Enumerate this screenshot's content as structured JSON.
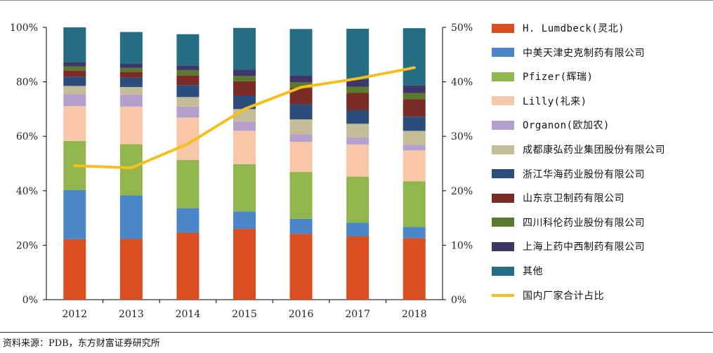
{
  "chart_data": {
    "type": "bar",
    "stacked": true,
    "categories": [
      "2012",
      "2013",
      "2014",
      "2015",
      "2016",
      "2017",
      "2018"
    ],
    "y_left": {
      "ylim": [
        0,
        100
      ],
      "ticks": [
        "0%",
        "20%",
        "40%",
        "60%",
        "80%",
        "100%"
      ]
    },
    "y_right": {
      "ylim": [
        0,
        50
      ],
      "ticks": [
        "0%",
        "10%",
        "20%",
        "30%",
        "40%",
        "50%"
      ]
    },
    "series": [
      {
        "name": "H. Lumdbeck(灵北)",
        "color": "#d94f21",
        "values": [
          22.2,
          22.3,
          24.6,
          26.0,
          24.2,
          23.2,
          22.6
        ]
      },
      {
        "name": "中美天津史克制药有限公司",
        "color": "#4a86c8",
        "values": [
          18.1,
          16.0,
          9.0,
          6.4,
          5.5,
          5.1,
          4.1
        ]
      },
      {
        "name": "Pfizer(辉瑞)",
        "color": "#92b64e",
        "values": [
          18.0,
          18.8,
          17.7,
          17.4,
          17.2,
          16.9,
          16.8
        ]
      },
      {
        "name": "Lilly(礼来)",
        "color": "#f7c7a8",
        "values": [
          12.8,
          13.8,
          15.6,
          12.2,
          11.1,
          11.8,
          11.3
        ]
      },
      {
        "name": "Organon(欧加农)",
        "color": "#b49fcd",
        "values": [
          4.4,
          4.4,
          4.0,
          3.4,
          2.8,
          2.6,
          2.1
        ]
      },
      {
        "name": "成都康弘药业集团股份有限公司",
        "color": "#c4bd97",
        "values": [
          3.0,
          2.8,
          3.5,
          4.6,
          5.4,
          5.0,
          5.1
        ]
      },
      {
        "name": "浙江华海药业股份有限公司",
        "color": "#2a4d7c",
        "values": [
          3.4,
          3.4,
          4.4,
          5.0,
          5.6,
          5.0,
          5.2
        ]
      },
      {
        "name": "山东京卫制药有限公司",
        "color": "#7b2b26",
        "values": [
          2.3,
          2.2,
          3.6,
          5.2,
          6.0,
          6.3,
          6.4
        ]
      },
      {
        "name": "四川科伦药业股份有限公司",
        "color": "#5a7a2e",
        "values": [
          1.5,
          1.4,
          1.9,
          2.0,
          2.0,
          2.3,
          2.3
        ]
      },
      {
        "name": "上海上药中西制药有限公司",
        "color": "#3e3568",
        "values": [
          1.6,
          1.5,
          1.7,
          2.2,
          2.6,
          2.6,
          2.8
        ]
      },
      {
        "name": "其他",
        "color": "#256d82",
        "values": [
          12.7,
          11.7,
          11.5,
          15.4,
          17.0,
          18.7,
          21.0
        ]
      }
    ],
    "line_series": {
      "name": "国内厂家合计占比",
      "color": "#f6bf1e",
      "axis": "right",
      "values": [
        24.6,
        24.2,
        28.6,
        35.0,
        39.0,
        40.6,
        42.6
      ]
    }
  },
  "source": "资料来源：PDB，东方财富证券研究所"
}
